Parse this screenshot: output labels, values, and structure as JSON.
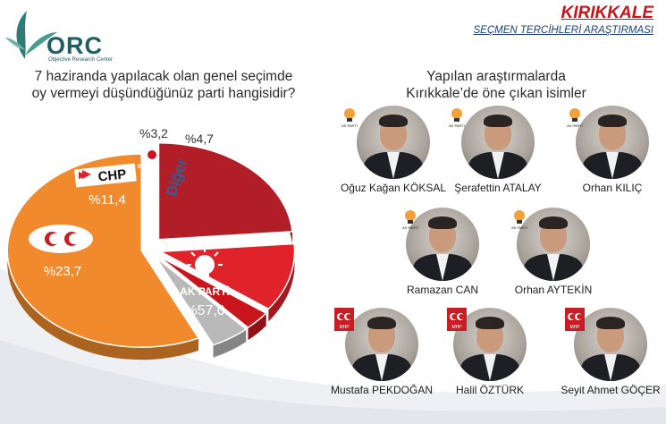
{
  "brand": {
    "logo_text": "ORC",
    "logo_sub": "Objective Research Center",
    "title": "KIRIKKALE",
    "subtitle": "SEÇMEN TERCİHLERİ ARAŞTIRMASI"
  },
  "question": {
    "line1": "7 haziranda yapılacak olan genel seçimde",
    "line2": "oy vermeyi düşündüğünüz parti hangisidir?"
  },
  "names_heading": {
    "line1": "Yapılan araştırmalarda",
    "line2": "Kırıkkale’de öne çıkan isimler"
  },
  "chart_data": {
    "type": "pie",
    "title": "",
    "series": [
      {
        "name": "AK PARTİ",
        "value": 57.0,
        "label": "%57,0",
        "color": "#f08a2c"
      },
      {
        "name": "MHP",
        "value": 23.7,
        "label": "%23,7",
        "color": "#b21e28"
      },
      {
        "name": "CHP",
        "value": 11.4,
        "label": "%11,4",
        "color": "#e0222a"
      },
      {
        "name": "SAADET",
        "value": 3.2,
        "label": "%3,2",
        "color": "#c9161d"
      },
      {
        "name": "Diğer",
        "value": 4.7,
        "label": "%4,7",
        "color": "#b9b9b9"
      }
    ],
    "slice_texts": {
      "ak": "AK PARTİ",
      "chp": "CHP",
      "saadet": "SAADET",
      "diger": "Diğer"
    }
  },
  "candidates": [
    {
      "name": "Oğuz Kağan KÖKSAL",
      "party": "AK PARTİ",
      "icon": "ak-party-bulb-icon"
    },
    {
      "name": "Şerafettin ATALAY",
      "party": "AK PARTİ",
      "icon": "ak-party-bulb-icon"
    },
    {
      "name": "Orhan KILIÇ",
      "party": "AK PARTİ",
      "icon": "ak-party-bulb-icon"
    },
    {
      "name": "Ramazan CAN",
      "party": "AK PARTİ",
      "icon": "ak-party-bulb-icon"
    },
    {
      "name": "Orhan AYTEKİN",
      "party": "AK PARTİ",
      "icon": "ak-party-bulb-icon"
    },
    {
      "name": "Mustafa PEKDOĞAN",
      "party": "MHP",
      "icon": "mhp-crescents-icon"
    },
    {
      "name": "Halil ÖZTÜRK",
      "party": "MHP",
      "icon": "mhp-crescents-icon"
    },
    {
      "name": "Seyit Ahmet GÖÇER",
      "party": "MHP",
      "icon": "mhp-crescents-icon"
    }
  ]
}
